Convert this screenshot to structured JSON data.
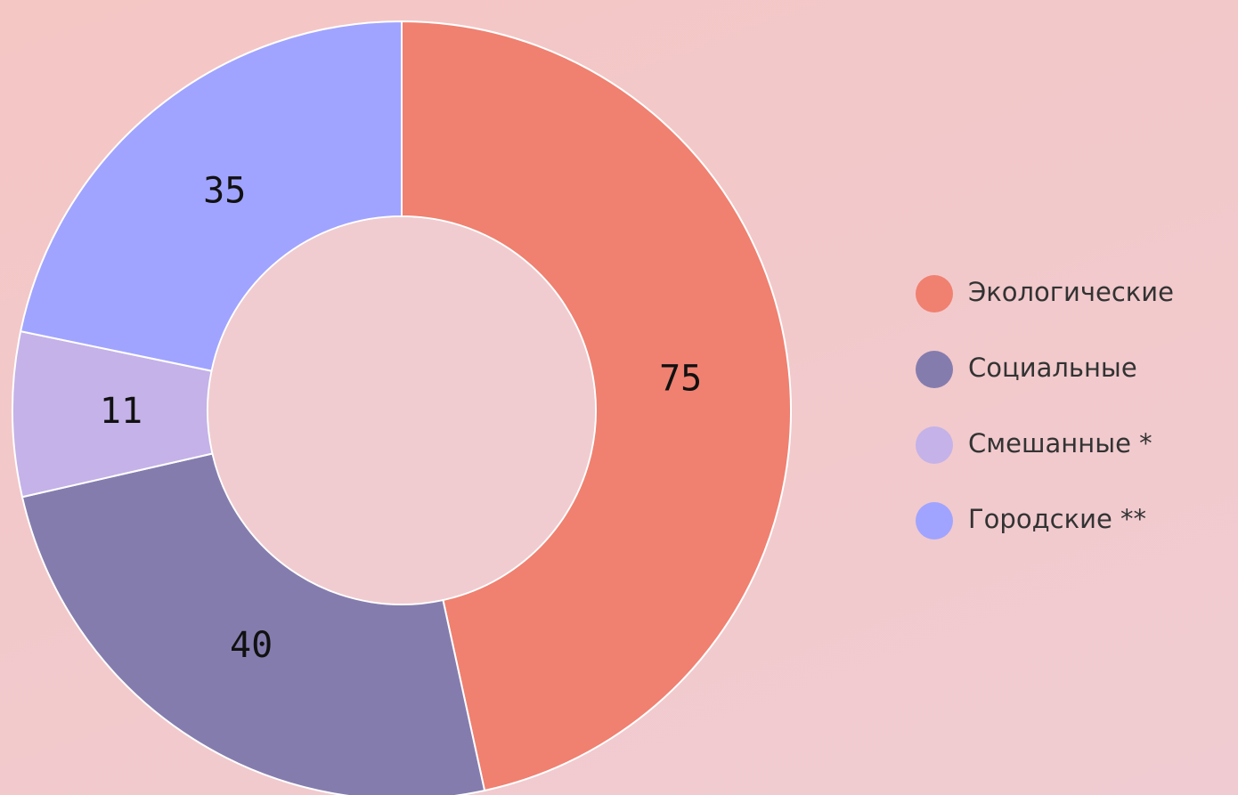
{
  "chart_data": {
    "type": "donut",
    "categories": [
      "Экологические",
      "Социальные",
      "Смешанные *",
      "Городские **"
    ],
    "values": [
      75,
      40,
      11,
      35
    ],
    "colors": [
      "#f08070",
      "#857cae",
      "#c4b2e8",
      "#a0a4ff"
    ],
    "legend": "right"
  }
}
